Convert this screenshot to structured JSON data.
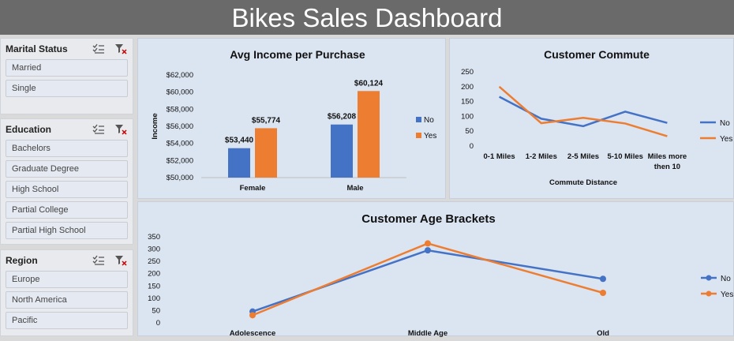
{
  "dashboard": {
    "title": "Bikes Sales Dashboard"
  },
  "slicers": [
    {
      "name": "marital-status",
      "title": "Marital Status",
      "items": [
        "Married",
        "Single"
      ]
    },
    {
      "name": "education",
      "title": "Education",
      "items": [
        "Bachelors",
        "Graduate Degree",
        "High School",
        "Partial College",
        "Partial High School"
      ]
    },
    {
      "name": "region",
      "title": "Region",
      "items": [
        "Europe",
        "North America",
        "Pacific"
      ]
    }
  ],
  "colors": {
    "no": "#4472c4",
    "yes": "#ed7d31",
    "panel": "#dbe4f1",
    "title_bar": "#6a6a6a"
  },
  "icons": {
    "multi_select": "multi-select-icon",
    "clear_filter": "clear-filter-icon"
  },
  "chart_data": [
    {
      "type": "bar",
      "title": "Avg Income per Purchase",
      "ylabel": "Income",
      "xlabel": "",
      "categories": [
        "Female",
        "Male"
      ],
      "series": [
        {
          "name": "No",
          "values": [
            53440,
            56208
          ],
          "labels": [
            "$53,440",
            "$56,208"
          ]
        },
        {
          "name": "Yes",
          "values": [
            55774,
            60124
          ],
          "labels": [
            "$55,774",
            "$60,124"
          ]
        }
      ],
      "ylim": [
        50000,
        62000
      ],
      "yticks": [
        "$50,000",
        "$52,000",
        "$54,000",
        "$56,000",
        "$58,000",
        "$60,000",
        "$62,000"
      ],
      "legend": "right",
      "grid": false
    },
    {
      "type": "line",
      "title": "Customer Commute",
      "xlabel": "Commute Distance",
      "ylabel": "",
      "categories": [
        "0-1 Miles",
        "1-2 Miles",
        "2-5 Miles",
        "5-10 Miles",
        "Miles more then 10"
      ],
      "series": [
        {
          "name": "No",
          "values": [
            166,
            92,
            67,
            116,
            78
          ]
        },
        {
          "name": "Yes",
          "values": [
            200,
            77,
            95,
            76,
            33
          ]
        }
      ],
      "ylim": [
        0,
        250
      ],
      "yticks": [
        "0",
        "50",
        "100",
        "150",
        "200",
        "250"
      ],
      "legend": "right",
      "grid": false
    },
    {
      "type": "line",
      "title": "Customer Age Brackets",
      "xlabel": "",
      "ylabel": "",
      "categories": [
        "Adolescence",
        "Middle Age",
        "Old"
      ],
      "series": [
        {
          "name": "No",
          "values": [
            46,
            295,
            179
          ]
        },
        {
          "name": "Yes",
          "values": [
            31,
            323,
            122
          ]
        }
      ],
      "ylim": [
        0,
        350
      ],
      "yticks": [
        "0",
        "50",
        "100",
        "150",
        "200",
        "250",
        "300",
        "350"
      ],
      "legend": "right",
      "grid": false
    }
  ]
}
